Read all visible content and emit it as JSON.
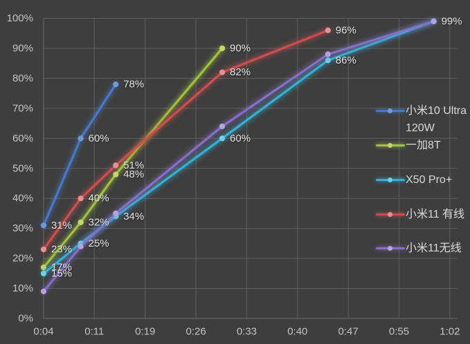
{
  "colors": {
    "background": "#3E3E3E",
    "gridline": "#5F5F5F",
    "axis_line": "#6A6A6A",
    "tick_label": "#C4C4C4",
    "data_label": "#E2E2E2",
    "legend_text": "#D9D9D9"
  },
  "chart_data": {
    "type": "line",
    "title": "",
    "x_axis": {
      "tick_labels": [
        "0:04",
        "0:11",
        "0:19",
        "0:26",
        "0:33",
        "0:40",
        "0:47",
        "0:55",
        "1:02"
      ],
      "tick_minutes": [
        4,
        11.25,
        18.5,
        25.75,
        33,
        40.25,
        47.5,
        54.75,
        62
      ],
      "min_minutes": 4,
      "max_minutes": 63.1,
      "grid": true
    },
    "y_axis": {
      "tick_labels": [
        "0%",
        "10%",
        "20%",
        "30%",
        "40%",
        "50%",
        "60%",
        "70%",
        "80%",
        "90%",
        "100%"
      ],
      "min": 0,
      "max": 100,
      "grid": true
    },
    "series": [
      {
        "name": "小米10 Ultra 120W",
        "color": "#4A78C2",
        "marker_color": "#6E9BD8",
        "x_minutes": [
          4,
          9.3,
          14.3
        ],
        "values": [
          31,
          60,
          78
        ],
        "data_labels": [
          "31%",
          "60%",
          "78%"
        ]
      },
      {
        "name": "一加8T",
        "color": "#A2C13E",
        "marker_color": "#C3D76C",
        "x_minutes": [
          4,
          9.3,
          14.3,
          29.5
        ],
        "values": [
          17,
          32,
          48,
          90
        ],
        "data_labels": [
          "17%",
          "32%",
          "48%",
          "90%"
        ]
      },
      {
        "name": "X50 Pro+",
        "color": "#36AFD2",
        "marker_color": "#6FD0E8",
        "x_minutes": [
          4,
          9.3,
          14.3,
          29.5,
          44.6,
          59.7
        ],
        "values": [
          15,
          25,
          34,
          60,
          86,
          99
        ],
        "data_labels": [
          "15%",
          "25%",
          "34%",
          "60%",
          "86%",
          "99%"
        ]
      },
      {
        "name": "小米11 有线",
        "color": "#CC4F50",
        "marker_color": "#E29291",
        "x_minutes": [
          4,
          9.3,
          14.3,
          29.5,
          44.6
        ],
        "values": [
          23,
          40,
          51,
          82,
          96
        ],
        "data_labels": [
          "23%",
          "40%",
          "51%",
          "82%",
          "96%"
        ]
      },
      {
        "name": "小米11无线",
        "color": "#8470C4",
        "marker_color": "#B3A3DF",
        "x_minutes": [
          4,
          9.3,
          14.3,
          29.5,
          44.6,
          59.7
        ],
        "values": [
          9,
          24,
          35,
          64,
          88,
          99
        ],
        "data_labels": []
      }
    ],
    "legend": {
      "position": "right",
      "entries": [
        {
          "series_index": 0,
          "label_lines": [
            "小米10 Ultra",
            "120W"
          ]
        },
        {
          "series_index": 1,
          "label_lines": [
            "一加8T"
          ]
        },
        {
          "series_index": 2,
          "label_lines": [
            "X50 Pro+"
          ]
        },
        {
          "series_index": 3,
          "label_lines": [
            "小米11 有线"
          ]
        },
        {
          "series_index": 4,
          "label_lines": [
            "小米11无线"
          ]
        }
      ]
    }
  }
}
